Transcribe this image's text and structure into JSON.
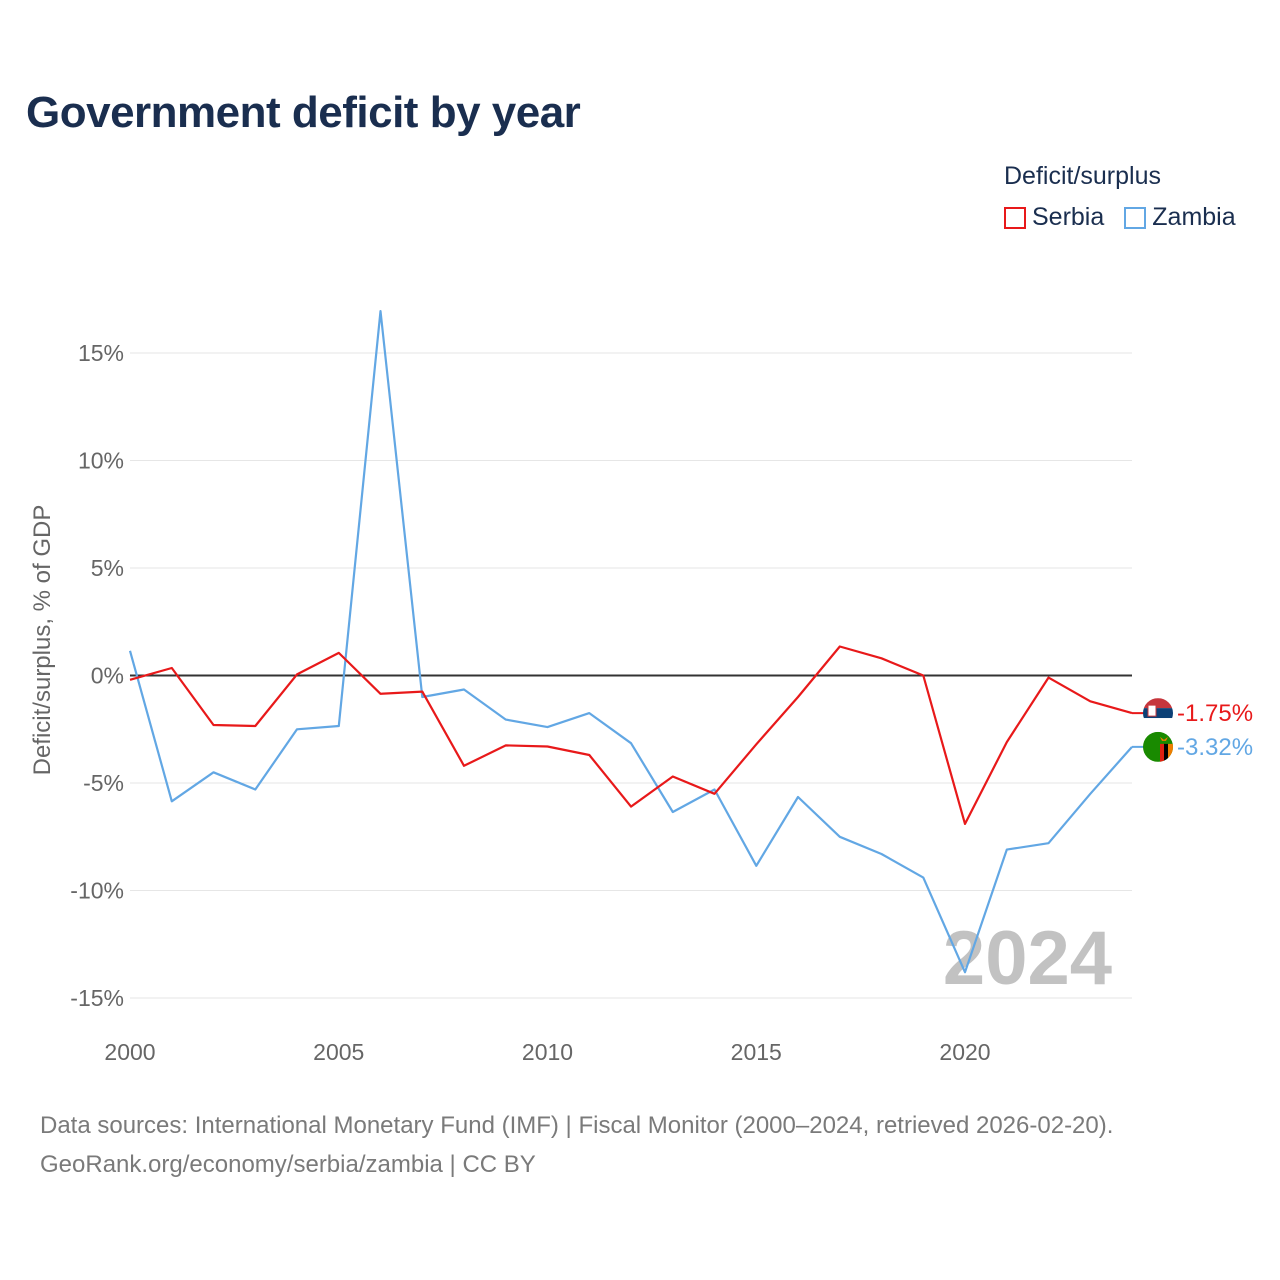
{
  "title": "Government deficit by year",
  "legend": {
    "title": "Deficit/surplus",
    "items": [
      {
        "label": "Serbia",
        "color": "#e8191a"
      },
      {
        "label": "Zambia",
        "color": "#62a7e4"
      }
    ]
  },
  "footer": {
    "line1": "Data sources: International Monetary Fund (IMF) | Fiscal Monitor (2000–2024, retrieved 2026-02-20).",
    "line2": "GeoRank.org/economy/serbia/zambia | CC BY"
  },
  "chart_data": {
    "type": "line",
    "title": "Government deficit by year",
    "xlabel": "",
    "ylabel": "Deficit/surplus, % of GDP",
    "xlim": [
      2000,
      2024
    ],
    "ylim": [
      -15,
      17
    ],
    "yticks": [
      15,
      10,
      5,
      0,
      -5,
      -10,
      -15
    ],
    "ytick_labels": [
      "15%",
      "10%",
      "5%",
      "0%",
      "-5%",
      "-10%",
      "-15%"
    ],
    "xticks": [
      2000,
      2005,
      2010,
      2015,
      2020
    ],
    "xtick_labels": [
      "2000",
      "2005",
      "2010",
      "2015",
      "2020"
    ],
    "year_watermark": "2024",
    "grid": true,
    "zero_line": true,
    "x": [
      2000,
      2001,
      2002,
      2003,
      2004,
      2005,
      2006,
      2007,
      2008,
      2009,
      2010,
      2011,
      2012,
      2013,
      2014,
      2015,
      2016,
      2017,
      2018,
      2019,
      2020,
      2021,
      2022,
      2023,
      2024
    ],
    "series": [
      {
        "name": "Serbia",
        "color": "#e8191a",
        "end_label": "-1.75%",
        "values": [
          -0.2,
          0.35,
          -2.3,
          -2.35,
          0.05,
          1.05,
          -0.85,
          -0.75,
          -4.2,
          -3.25,
          -3.3,
          -3.7,
          -6.1,
          -4.7,
          -5.5,
          -3.2,
          -1.0,
          1.35,
          0.8,
          0.0,
          -6.9,
          -3.1,
          -0.1,
          -1.2,
          -1.75
        ]
      },
      {
        "name": "Zambia",
        "color": "#62a7e4",
        "end_label": "-3.32%",
        "values": [
          1.15,
          -5.85,
          -4.5,
          -5.3,
          -2.5,
          -2.35,
          16.95,
          -1.0,
          -0.65,
          -2.05,
          -2.4,
          -1.75,
          -3.15,
          -6.35,
          -5.3,
          -8.85,
          -5.65,
          -7.5,
          -8.3,
          -9.4,
          -13.8,
          -8.1,
          -7.8,
          -5.5,
          -3.32
        ]
      }
    ]
  }
}
